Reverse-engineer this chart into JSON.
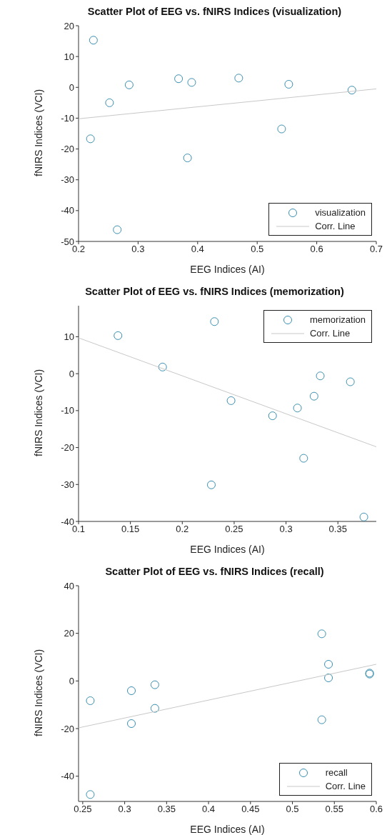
{
  "chart_data": [
    {
      "type": "scatter",
      "title": "Scatter Plot of EEG vs. fNIRS Indices (visualization)",
      "xlabel": "EEG Indices (AI)",
      "ylabel": "fNIRS Indices (VCI)",
      "xlim": [
        0.2,
        0.7
      ],
      "ylim": [
        -50,
        20
      ],
      "xticks": [
        0.2,
        0.3,
        0.4,
        0.5,
        0.6,
        0.7
      ],
      "yticks": [
        -50,
        -40,
        -30,
        -20,
        -10,
        0,
        10,
        20
      ],
      "grid": false,
      "legend": "bottom right",
      "series": [
        {
          "name": "visualization",
          "marker": "circle",
          "color": "#3a8fb0",
          "x": [
            0.22,
            0.225,
            0.252,
            0.265,
            0.285,
            0.368,
            0.383,
            0.39,
            0.469,
            0.541,
            0.553,
            0.659
          ],
          "values": [
            -16.7,
            15.3,
            -5,
            -46.2,
            0.8,
            2.8,
            -22.9,
            1.6,
            3,
            -13.5,
            1,
            -0.9
          ]
        },
        {
          "name": "Corr. Line",
          "type": "line",
          "color": "#c8c8c8",
          "x": [
            0.2,
            0.7
          ],
          "values": [
            -10.2,
            -0.5
          ]
        }
      ]
    },
    {
      "type": "scatter",
      "title": "Scatter Plot of EEG vs. fNIRS Indices (memorization)",
      "xlabel": "EEG Indices (AI)",
      "ylabel": "fNIRS Indices (VCI)",
      "xlim": [
        0.1,
        0.387
      ],
      "ylim": [
        -40,
        18.4
      ],
      "xticks": [
        0.1,
        0.15,
        0.2,
        0.25,
        0.3,
        0.35
      ],
      "yticks": [
        -40,
        -30,
        -20,
        -10,
        0,
        10
      ],
      "grid": false,
      "legend": "top right",
      "series": [
        {
          "name": "memorization",
          "marker": "circle",
          "color": "#3a8fb0",
          "x": [
            0.138,
            0.181,
            0.228,
            0.231,
            0.247,
            0.287,
            0.311,
            0.317,
            0.327,
            0.333,
            0.362,
            0.375
          ],
          "values": [
            10.3,
            1.8,
            -30.1,
            14.1,
            -7.3,
            -11.4,
            -9.3,
            -22.9,
            -6.1,
            -0.6,
            -2.2,
            -38.8
          ]
        },
        {
          "name": "Corr. Line",
          "type": "line",
          "color": "#c8c8c8",
          "x": [
            0.1,
            0.387
          ],
          "values": [
            9.7,
            -19.8
          ]
        }
      ]
    },
    {
      "type": "scatter",
      "title": "Scatter Plot of EEG vs. fNIRS Indices (recall)",
      "xlabel": "EEG Indices (AI)",
      "ylabel": "fNIRS Indices (VCI)",
      "xlim": [
        0.245,
        0.6
      ],
      "ylim": [
        -50.6,
        40
      ],
      "xticks": [
        0.25,
        0.3,
        0.35,
        0.4,
        0.45,
        0.5,
        0.55,
        0.6
      ],
      "yticks": [
        -40,
        -20,
        0,
        20,
        40
      ],
      "grid": false,
      "legend": "bottom right",
      "series": [
        {
          "name": "recall",
          "marker": "circle",
          "color": "#3a8fb0",
          "x": [
            0.259,
            0.259,
            0.308,
            0.308,
            0.336,
            0.336,
            0.535,
            0.535,
            0.543,
            0.543,
            0.592,
            0.592
          ],
          "values": [
            -8.3,
            -47.7,
            -4.1,
            -17.9,
            -1.6,
            -11.5,
            19.8,
            -16.3,
            7,
            1.3,
            3.3,
            2.9
          ]
        },
        {
          "name": "Corr. Line",
          "type": "line",
          "color": "#c8c8c8",
          "x": [
            0.245,
            0.6
          ],
          "values": [
            -19.7,
            7
          ]
        }
      ]
    }
  ]
}
